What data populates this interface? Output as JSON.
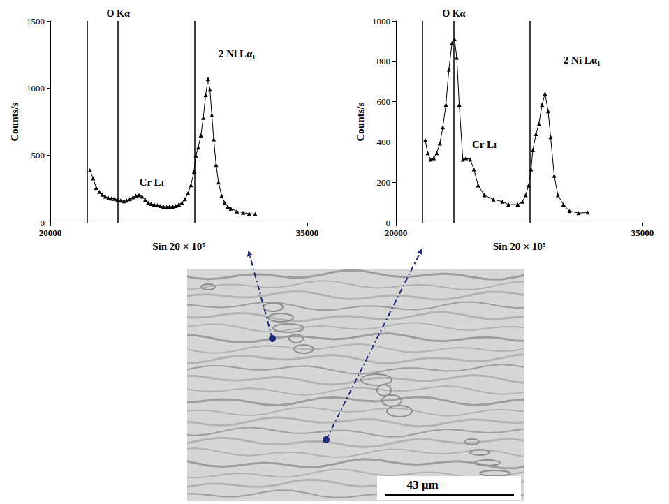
{
  "chart_data": [
    {
      "type": "line",
      "x_label": "Sin 2θ × 10⁵",
      "y_label": "Counts/s",
      "color": "#000000",
      "marker": "triangle",
      "grid": false,
      "xlim": [
        20000,
        35000
      ],
      "xticks": [
        20000,
        35000
      ],
      "ylim": [
        0,
        1500
      ],
      "yticks": [
        0,
        500,
        1000,
        1500
      ],
      "x": [
        22320,
        22500,
        22680,
        22860,
        23040,
        23210,
        23390,
        23570,
        23750,
        23930,
        24110,
        24290,
        24460,
        24640,
        24820,
        25000,
        25180,
        25360,
        25540,
        25710,
        25890,
        26070,
        26250,
        26430,
        26610,
        26790,
        26960,
        27140,
        27320,
        27500,
        27680,
        27860,
        28040,
        28210,
        28390,
        28500,
        28640,
        28790,
        28930,
        29070,
        29210,
        29320,
        29430,
        29540,
        29680,
        29820,
        30000,
        30180,
        30360,
        30540,
        30890,
        31250,
        31610,
        31960
      ],
      "values": [
        390,
        330,
        260,
        230,
        210,
        195,
        185,
        180,
        178,
        172,
        165,
        160,
        165,
        175,
        190,
        200,
        205,
        195,
        170,
        150,
        140,
        135,
        130,
        125,
        120,
        118,
        120,
        120,
        125,
        135,
        150,
        175,
        220,
        280,
        380,
        500,
        560,
        650,
        780,
        950,
        1070,
        990,
        800,
        620,
        430,
        300,
        200,
        150,
        120,
        105,
        85,
        75,
        68,
        65
      ],
      "vertical_lines": [
        {
          "x": 22140
        },
        {
          "x": 23960,
          "label": "O Kα"
        },
        {
          "x": 28430
        }
      ],
      "annotations": [
        {
          "text": "Cr Lₗ",
          "x": 25200,
          "y": 300
        },
        {
          "text": "2 Ni Lα₁",
          "x": 29820,
          "y": 1256
        }
      ]
    },
    {
      "type": "line",
      "x_label": "Sin 2θ × 10⁵",
      "y_label": "Counts/s",
      "color": "#000000",
      "marker": "triangle",
      "grid": false,
      "xlim": [
        20000,
        35000
      ],
      "xticks": [
        20000,
        35000
      ],
      "ylim": [
        0,
        1000
      ],
      "yticks": [
        0,
        200,
        400,
        600,
        800,
        1000
      ],
      "x": [
        21780,
        21930,
        22110,
        22300,
        22480,
        22670,
        22850,
        23040,
        23220,
        23410,
        23560,
        23700,
        23850,
        24070,
        24260,
        24520,
        24740,
        25000,
        25370,
        25930,
        26480,
        26850,
        27410,
        27700,
        27890,
        28070,
        28220,
        28330,
        28520,
        28700,
        28890,
        29070,
        29260,
        29410,
        29630,
        29850,
        30190,
        30560,
        31110,
        31670
      ],
      "values": [
        409,
        345,
        313,
        320,
        345,
        393,
        473,
        585,
        760,
        890,
        910,
        818,
        585,
        313,
        320,
        313,
        265,
        185,
        137,
        115,
        105,
        90,
        90,
        105,
        137,
        185,
        265,
        360,
        440,
        490,
        585,
        640,
        553,
        425,
        233,
        137,
        90,
        58,
        48,
        51
      ],
      "vertical_lines": [
        {
          "x": 21590
        },
        {
          "x": 23520,
          "label": "O Kα"
        },
        {
          "x": 28150
        }
      ],
      "annotations": [
        {
          "text": "Cr Lₗ",
          "x": 24630,
          "y": 387
        },
        {
          "text": "2 Ni Lα₁",
          "x": 30190,
          "y": 808
        }
      ]
    }
  ],
  "micrograph": {
    "scale_bar": "43 µm"
  }
}
